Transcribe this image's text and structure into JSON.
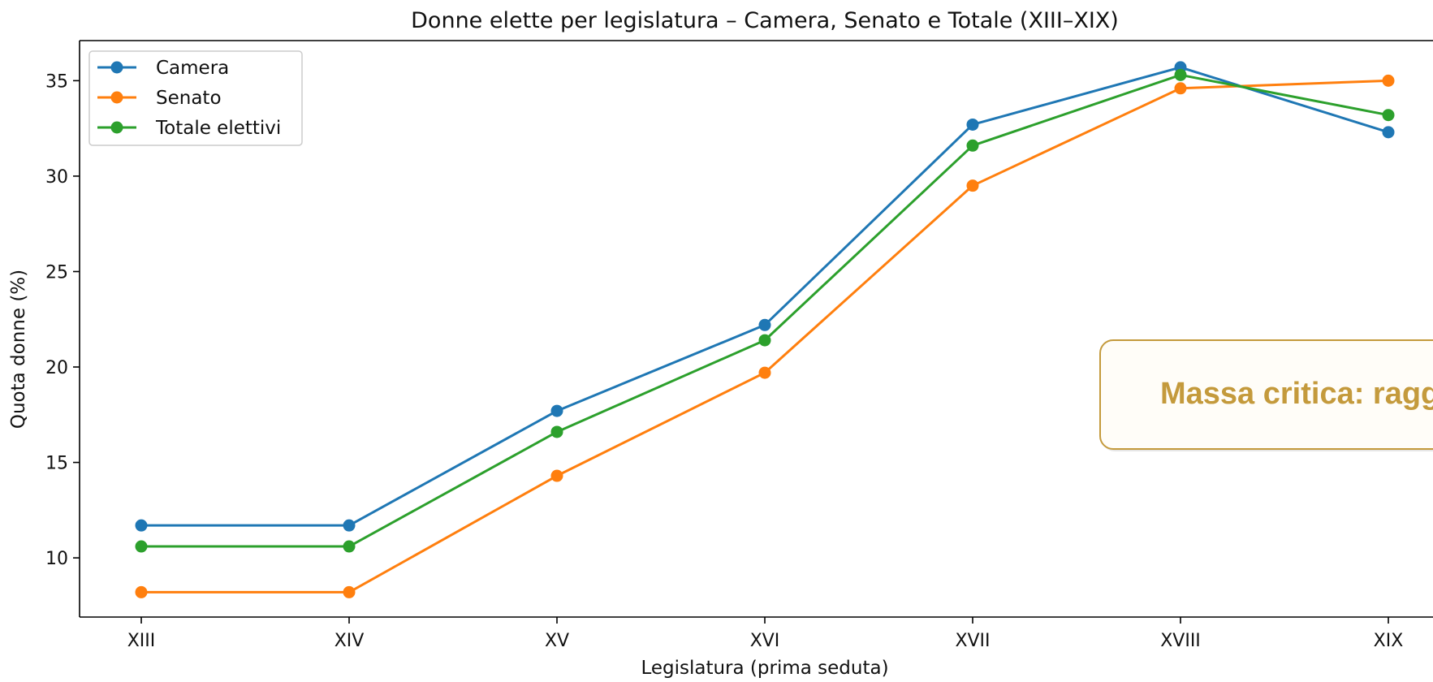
{
  "chart_data": {
    "type": "line",
    "title": "Donne elette per legislatura – Camera, Senato e Totale (XIII–XIX)",
    "xlabel": "Legislatura (prima seduta)",
    "ylabel": "Quota donne (%)",
    "categories": [
      "XIII",
      "XIV",
      "XV",
      "XVI",
      "XVII",
      "XVIII",
      "XIX"
    ],
    "ylim": [
      6.9,
      37.1
    ],
    "yticks": [
      10,
      15,
      20,
      25,
      30,
      35
    ],
    "grid": false,
    "legend_position": "top-left",
    "series": [
      {
        "name": "Camera",
        "color": "#1f77b4",
        "values": [
          11.7,
          11.7,
          17.7,
          22.2,
          32.7,
          35.7,
          32.3
        ]
      },
      {
        "name": "Senato",
        "color": "#ff7f0e",
        "values": [
          8.2,
          8.2,
          14.3,
          19.7,
          29.5,
          34.6,
          35.0
        ]
      },
      {
        "name": "Totale elettivi",
        "color": "#2ca02c",
        "values": [
          10.6,
          10.6,
          16.6,
          21.4,
          31.6,
          35.3,
          33.2
        ]
      }
    ],
    "annotation": {
      "text": "Massa critica: ragg",
      "text_color": "#c49a3c",
      "border_color": "#c49a3c"
    }
  }
}
